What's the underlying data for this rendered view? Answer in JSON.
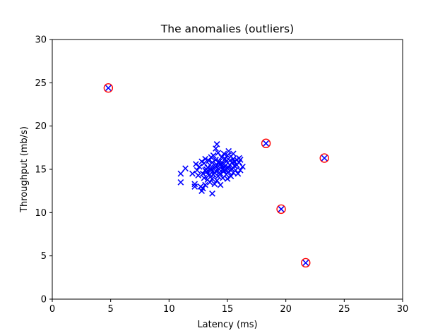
{
  "chart_data": {
    "type": "scatter",
    "title": "The anomalies (outliers)",
    "xlabel": "Latency (ms)",
    "ylabel": "Throughput (mb/s)",
    "xlim": [
      0,
      30
    ],
    "ylim": [
      0,
      30
    ],
    "xticks": [
      0,
      5,
      10,
      15,
      20,
      25,
      30
    ],
    "yticks": [
      0,
      5,
      10,
      15,
      20,
      25,
      30
    ],
    "grid": false,
    "colors": {
      "points": "#0000ff",
      "outlier_ring": "#ff0000"
    },
    "series": [
      {
        "marker": "x",
        "points": [
          [
            4.8,
            24.4
          ],
          [
            18.3,
            18.0
          ],
          [
            23.3,
            16.3
          ],
          [
            19.6,
            10.4
          ],
          [
            21.7,
            4.2
          ],
          [
            11.0,
            14.5
          ],
          [
            11.0,
            13.5
          ],
          [
            11.4,
            15.1
          ],
          [
            12.0,
            14.5
          ],
          [
            12.2,
            13.3
          ],
          [
            12.2,
            13.0
          ],
          [
            12.5,
            14.3
          ],
          [
            12.7,
            13.0
          ],
          [
            12.8,
            12.5
          ],
          [
            12.9,
            12.8
          ],
          [
            13.1,
            13.2
          ],
          [
            13.7,
            12.2
          ],
          [
            14.1,
            17.9
          ],
          [
            14.0,
            17.4
          ],
          [
            15.1,
            17.1
          ],
          [
            15.5,
            16.8
          ],
          [
            16.0,
            16.3
          ],
          [
            16.3,
            15.3
          ],
          [
            16.1,
            14.9
          ],
          [
            15.9,
            14.5
          ],
          [
            12.3,
            15.6
          ],
          [
            12.4,
            14.9
          ],
          [
            12.6,
            15.3
          ],
          [
            12.8,
            15.9
          ],
          [
            12.9,
            14.5
          ],
          [
            13.0,
            14.0
          ],
          [
            13.0,
            15.7
          ],
          [
            13.1,
            16.2
          ],
          [
            13.2,
            14.7
          ],
          [
            13.3,
            13.8
          ],
          [
            13.3,
            15.2
          ],
          [
            13.4,
            16.0
          ],
          [
            13.4,
            14.3
          ],
          [
            13.5,
            13.5
          ],
          [
            13.5,
            15.5
          ],
          [
            13.6,
            16.4
          ],
          [
            13.6,
            14.9
          ],
          [
            13.7,
            13.9
          ],
          [
            13.7,
            15.8
          ],
          [
            13.8,
            14.4
          ],
          [
            13.8,
            16.6
          ],
          [
            13.9,
            15.2
          ],
          [
            13.9,
            13.3
          ],
          [
            14.0,
            14.8
          ],
          [
            14.0,
            16.1
          ],
          [
            14.1,
            15.5
          ],
          [
            14.1,
            13.7
          ],
          [
            14.2,
            14.2
          ],
          [
            14.2,
            16.9
          ],
          [
            14.3,
            15.0
          ],
          [
            14.3,
            15.9
          ],
          [
            14.4,
            14.5
          ],
          [
            14.4,
            13.2
          ],
          [
            14.5,
            16.4
          ],
          [
            14.5,
            15.3
          ],
          [
            14.6,
            14.0
          ],
          [
            14.6,
            15.7
          ],
          [
            14.7,
            16.8
          ],
          [
            14.7,
            14.8
          ],
          [
            14.8,
            15.4
          ],
          [
            14.8,
            16.2
          ],
          [
            14.9,
            14.4
          ],
          [
            14.9,
            15.9
          ],
          [
            15.0,
            13.9
          ],
          [
            15.0,
            16.6
          ],
          [
            15.1,
            15.2
          ],
          [
            15.1,
            14.7
          ],
          [
            15.2,
            16.0
          ],
          [
            15.2,
            15.5
          ],
          [
            15.3,
            14.2
          ],
          [
            15.3,
            16.5
          ],
          [
            15.4,
            15.0
          ],
          [
            15.4,
            15.8
          ],
          [
            15.5,
            14.6
          ],
          [
            15.5,
            16.2
          ],
          [
            15.6,
            15.4
          ],
          [
            15.6,
            15.9
          ],
          [
            15.7,
            14.9
          ],
          [
            15.8,
            16.1
          ],
          [
            15.8,
            15.5
          ],
          [
            16.0,
            15.8
          ],
          [
            16.1,
            16.1
          ],
          [
            13.2,
            15.0
          ],
          [
            13.6,
            15.1
          ],
          [
            14.0,
            15.3
          ],
          [
            14.3,
            14.6
          ],
          [
            14.6,
            15.0
          ],
          [
            13.9,
            14.6
          ],
          [
            14.2,
            15.8
          ],
          [
            13.5,
            14.4
          ],
          [
            14.4,
            15.6
          ],
          [
            14.8,
            14.9
          ],
          [
            13.1,
            14.9
          ],
          [
            14.7,
            15.3
          ],
          [
            15.0,
            15.1
          ]
        ]
      },
      {
        "marker": "circle",
        "role": "anomalies",
        "points": [
          [
            4.8,
            24.4
          ],
          [
            18.3,
            18.0
          ],
          [
            23.3,
            16.3
          ],
          [
            19.6,
            10.4
          ],
          [
            21.7,
            4.2
          ]
        ]
      }
    ]
  }
}
